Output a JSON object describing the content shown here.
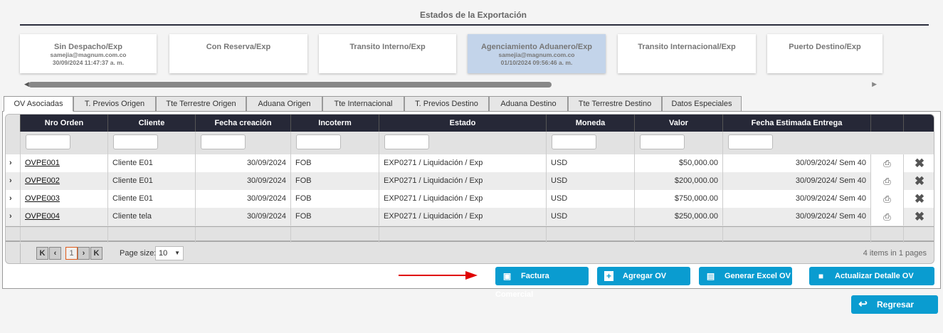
{
  "header": {
    "title": "Estados de la Exportación"
  },
  "steps": [
    {
      "name": "Sin Despacho/Exp",
      "user": "samejia@magnum.com.co",
      "date": "30/09/2024 11:47:37 a. m."
    },
    {
      "name": "Con Reserva/Exp"
    },
    {
      "name": "Transito Interno/Exp"
    },
    {
      "name": "Agenciamiento Aduanero/Exp",
      "user": "samejia@magnum.com.co",
      "date": "01/10/2024 09:56:46 a. m.",
      "active": true
    },
    {
      "name": "Transito Internacional/Exp"
    },
    {
      "name": "Puerto Destino/Exp"
    }
  ],
  "tabs": [
    "OV Asociadas",
    "T. Previos Origen",
    "Tte Terrestre Origen",
    "Aduana Origen",
    "Tte Internacional",
    "T. Previos Destino",
    "Aduana Destino",
    "Tte Terrestre Destino",
    "Datos Especiales"
  ],
  "grid": {
    "columns": [
      "Nro Orden",
      "Cliente",
      "Fecha creación",
      "Incoterm",
      "Estado",
      "Moneda",
      "Valor",
      "Fecha Estimada Entrega"
    ],
    "rows": [
      [
        "OVPE001",
        "Cliente E01",
        "30/09/2024",
        "FOB",
        "EXP0271 / Liquidación / Exp",
        "USD",
        "$50,000.00",
        "30/09/2024/ Sem 40"
      ],
      [
        "OVPE002",
        "Cliente E01",
        "30/09/2024",
        "FOB",
        "EXP0271 / Liquidación / Exp",
        "USD",
        "$200,000.00",
        "30/09/2024/ Sem 40"
      ],
      [
        "OVPE003",
        "Cliente E01",
        "30/09/2024",
        "FOB",
        "EXP0271 / Liquidación / Exp",
        "USD",
        "$750,000.00",
        "30/09/2024/ Sem 40"
      ],
      [
        "OVPE004",
        "Cliente tela",
        "30/09/2024",
        "FOB",
        "EXP0271 / Liquidación / Exp",
        "USD",
        "$250,000.00",
        "30/09/2024/ Sem 40"
      ]
    ],
    "pager": {
      "current": "1",
      "page_size_label": "Page size:",
      "page_size": "10",
      "summary": "4 items in 1 pages"
    }
  },
  "actions": {
    "factura": "Factura Comercial",
    "agregar": "Agregar OV",
    "excel": "Generar Excel OV",
    "actualizar": "Actualizar Detalle OV",
    "regresar": "Regresar"
  },
  "colors": {
    "button": "#0a9cd0",
    "header": "#262837",
    "active_step": "#c3d4ea",
    "arrow": "#e00000"
  }
}
